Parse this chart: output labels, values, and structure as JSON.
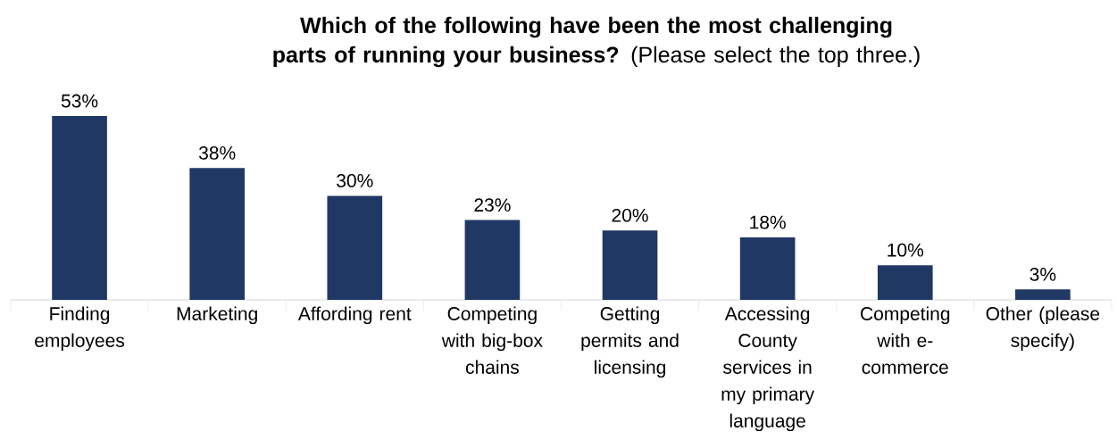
{
  "chart_data": {
    "type": "bar",
    "title": "**Which of the following have been the most challenging parts of running your business?** (Please select the top three.)",
    "categories": [
      "Finding employees",
      "Marketing",
      "Affording rent",
      "Competing with big-box chains",
      "Getting permits and licensing",
      "Accessing County services in my primary language",
      "Competing with e-commerce",
      "Other (please specify)"
    ],
    "values": [
      53,
      38,
      30,
      23,
      20,
      18,
      10,
      3
    ],
    "value_labels": [
      "53%",
      "38%",
      "30%",
      "23%",
      "20%",
      "18%",
      "10%",
      "3%"
    ],
    "color": "#203864"
  }
}
